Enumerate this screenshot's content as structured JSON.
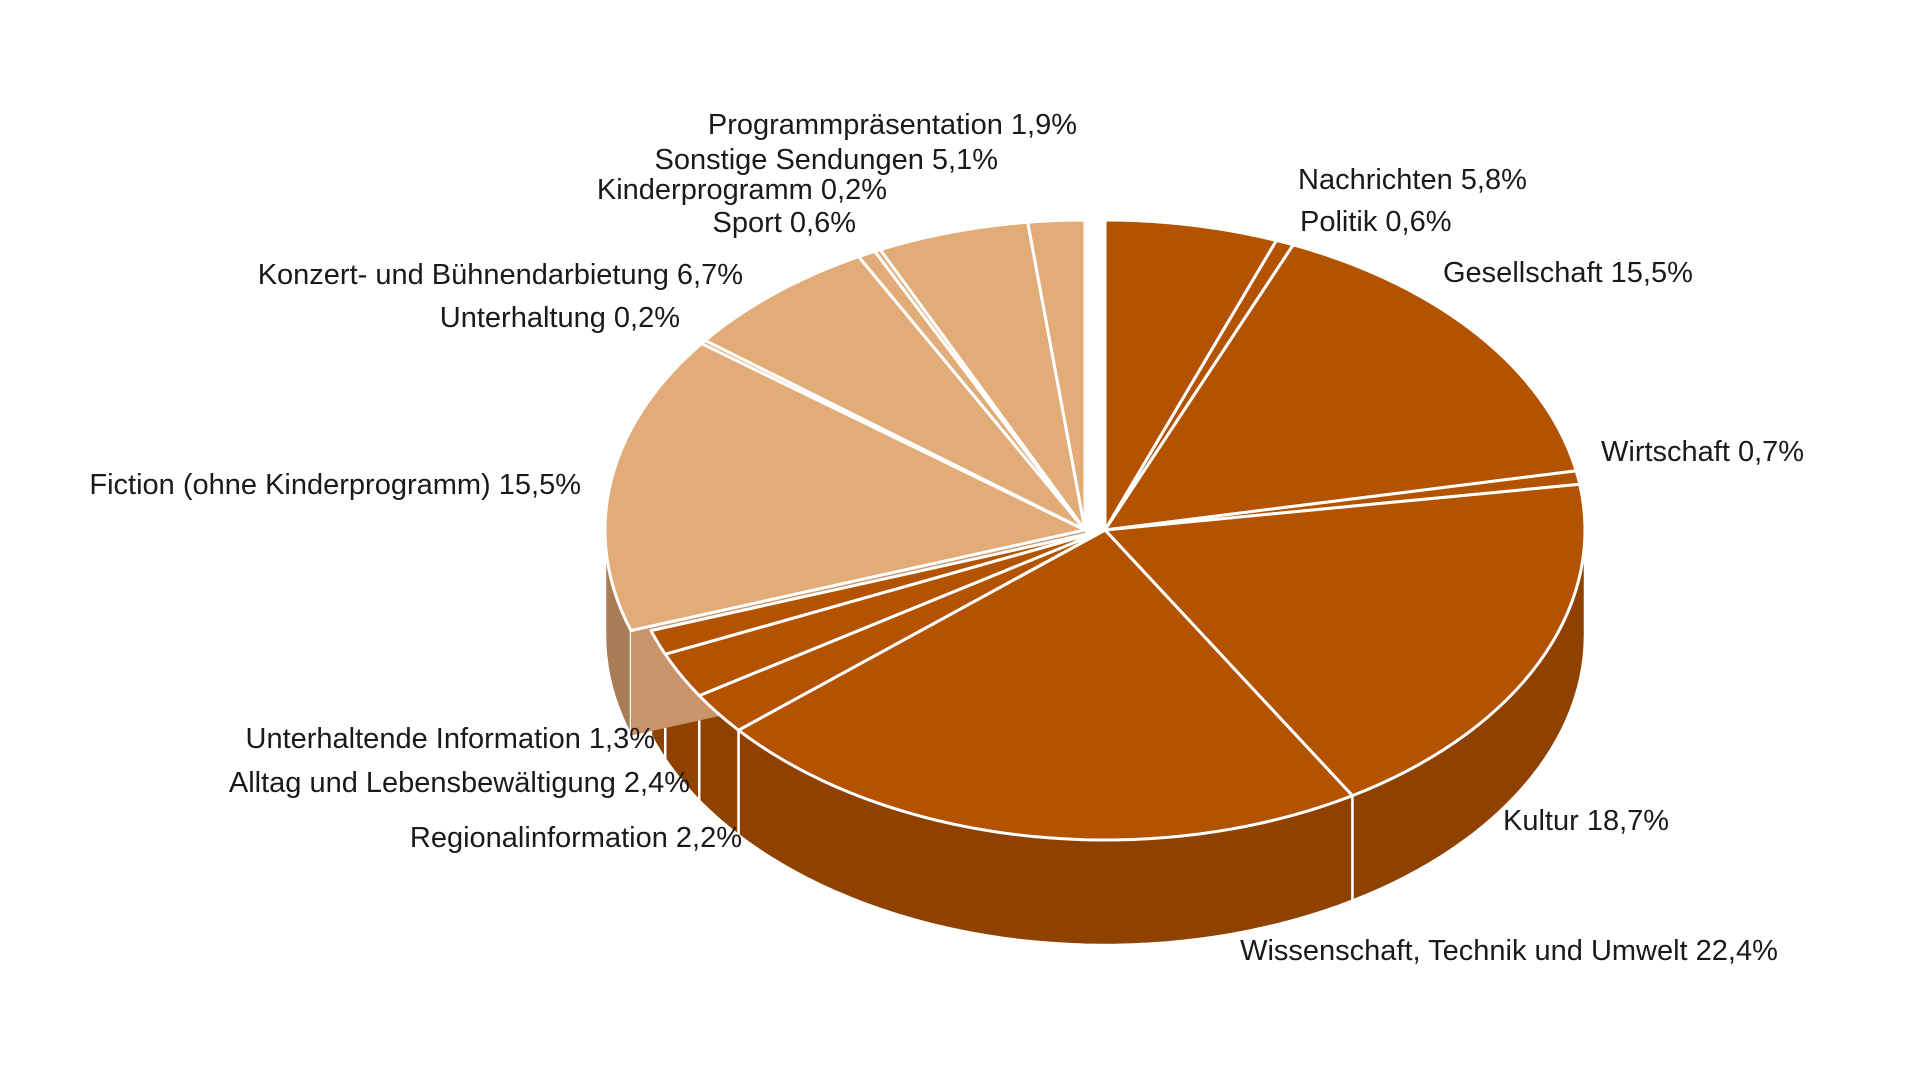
{
  "chart_data": {
    "type": "pie",
    "style": "3d-exploded",
    "title": "",
    "start_angle_deg": 90,
    "direction": "clockwise",
    "colors": {
      "main_top": "#B35300",
      "main_side": "#8F4100",
      "main_side_light": "#A14B00",
      "light_top": "#E1AC78",
      "light_side": "#A87C54",
      "light_side_inner": "#C9946A",
      "separator": "#FFFFFF"
    },
    "slices": [
      {
        "label": "Nachrichten 5,8%",
        "value": 5.8,
        "group": "main"
      },
      {
        "label": "Politik 0,6%",
        "value": 0.6,
        "group": "main"
      },
      {
        "label": "Gesellschaft 15,5%",
        "value": 15.5,
        "group": "main"
      },
      {
        "label": "Wirtschaft 0,7%",
        "value": 0.7,
        "group": "main"
      },
      {
        "label": "Kultur 18,7%",
        "value": 18.7,
        "group": "main"
      },
      {
        "label": "Wissenschaft, Technik und Umwelt 22,4%",
        "value": 22.4,
        "group": "main"
      },
      {
        "label": "Regionalinformation 2,2%",
        "value": 2.2,
        "group": "main"
      },
      {
        "label": "Alltag und Lebensbewältigung 2,4%",
        "value": 2.4,
        "group": "main"
      },
      {
        "label": "Unterhaltende Information 1,3%",
        "value": 1.3,
        "group": "main"
      },
      {
        "label": "Fiction (ohne Kinderprogramm) 15,5%",
        "value": 15.5,
        "group": "light"
      },
      {
        "label": "Unterhaltung 0,2%",
        "value": 0.2,
        "group": "light"
      },
      {
        "label": "Konzert- und Bühnendarbietung 6,7%",
        "value": 6.7,
        "group": "light"
      },
      {
        "label": "Sport 0,6%",
        "value": 0.6,
        "group": "light"
      },
      {
        "label": "Kinderprogramm 0,2%",
        "value": 0.2,
        "group": "light"
      },
      {
        "label": "Sonstige Sendungen 5,1%",
        "value": 5.1,
        "group": "light"
      },
      {
        "label": "Programmpräsentation 1,9%",
        "value": 1.9,
        "group": "light"
      }
    ]
  }
}
